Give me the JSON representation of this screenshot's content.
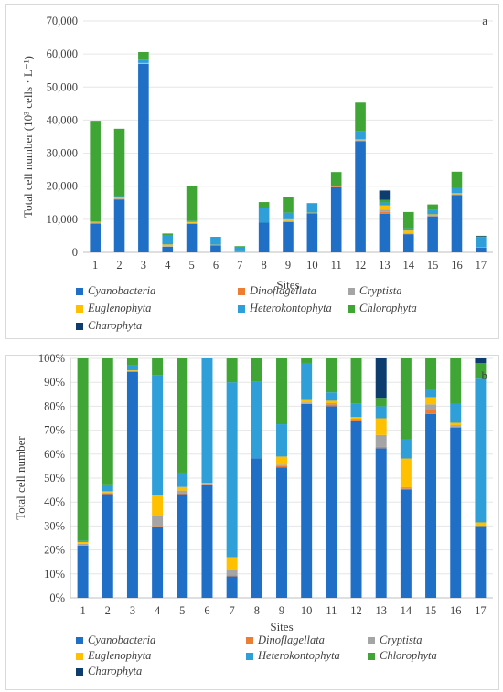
{
  "colors": {
    "Cyanobacteria": "#1f6fc6",
    "Dinoflagellata": "#ed7d31",
    "Cryptista": "#a5a5a5",
    "Euglenophyta": "#ffc000",
    "Heterokontophyta": "#2e9fd9",
    "Chlorophyta": "#3fa535",
    "Charophyta": "#0c3d6e"
  },
  "chart_data": [
    {
      "type": "bar",
      "stacked": true,
      "panel_label": "a",
      "categories": [
        "1",
        "2",
        "3",
        "4",
        "5",
        "6",
        "7",
        "8",
        "9",
        "10",
        "11",
        "12",
        "13",
        "14",
        "15",
        "16",
        "17"
      ],
      "xlabel": "Sites",
      "ylabel": "Total cell number (10³ cells · L⁻¹)",
      "ylim": [
        0,
        70000
      ],
      "yticks": [
        "0",
        "10,000",
        "20,000",
        "30,000",
        "40,000",
        "50,000",
        "60,000",
        "70,000"
      ],
      "ytick_values": [
        0,
        10000,
        20000,
        30000,
        40000,
        50000,
        60000,
        70000
      ],
      "legend_position": "bottom",
      "series": [
        {
          "name": "Cyanobacteria",
          "values": [
            8700,
            16000,
            57000,
            1700,
            8600,
            2100,
            150,
            9000,
            9200,
            11800,
            19700,
            33600,
            11700,
            5500,
            10900,
            17300,
            1400
          ]
        },
        {
          "name": "Dinoflagellata",
          "values": [
            100,
            100,
            100,
            0,
            100,
            0,
            0,
            0,
            100,
            0,
            200,
            200,
            500,
            100,
            100,
            100,
            0
          ]
        },
        {
          "name": "Cryptista",
          "values": [
            200,
            200,
            100,
            200,
            200,
            100,
            50,
            0,
            200,
            100,
            100,
            200,
            700,
            200,
            200,
            200,
            0
          ]
        },
        {
          "name": "Euglenophyta",
          "values": [
            200,
            300,
            100,
            500,
            300,
            100,
            100,
            0,
            500,
            100,
            100,
            200,
            1300,
            800,
            300,
            300,
            100
          ]
        },
        {
          "name": "Heterokontophyta",
          "values": [
            100,
            400,
            1000,
            2700,
            300,
            2400,
            1400,
            4500,
            2000,
            2700,
            100,
            2500,
            900,
            700,
            1300,
            1600,
            3000
          ]
        },
        {
          "name": "Chlorophyta",
          "values": [
            30500,
            20400,
            2300,
            600,
            10500,
            0,
            200,
            1700,
            4600,
            200,
            4100,
            8600,
            800,
            4900,
            1700,
            4900,
            300
          ]
        },
        {
          "name": "Charophyta",
          "values": [
            0,
            0,
            0,
            0,
            0,
            0,
            0,
            0,
            0,
            0,
            0,
            0,
            2800,
            0,
            0,
            0,
            200
          ]
        }
      ]
    },
    {
      "type": "bar",
      "stacked": true,
      "percent": true,
      "panel_label": "b",
      "categories": [
        "1",
        "2",
        "3",
        "4",
        "5",
        "6",
        "7",
        "8",
        "9",
        "10",
        "11",
        "12",
        "13",
        "14",
        "15",
        "16",
        "17"
      ],
      "xlabel": "Sites",
      "ylabel": "Total cell number",
      "ylim": [
        0,
        100
      ],
      "yticks": [
        "0%",
        "10%",
        "20%",
        "30%",
        "40%",
        "50%",
        "60%",
        "70%",
        "80%",
        "90%",
        "100%"
      ],
      "ytick_values": [
        0,
        10,
        20,
        30,
        40,
        50,
        60,
        70,
        80,
        90,
        100
      ],
      "legend_position": "bottom",
      "series": [
        {
          "name": "Cyanobacteria",
          "values": [
            21.8,
            43.3,
            94.4,
            29.8,
            43.3,
            47,
            9,
            58.3,
            54.5,
            81,
            80,
            74,
            62.5,
            45.3,
            76.8,
            71,
            30
          ]
        },
        {
          "name": "Dinoflagellata",
          "values": [
            0.3,
            0.3,
            0.1,
            0.2,
            0.5,
            0.2,
            0.5,
            0,
            0.6,
            0.2,
            0.8,
            0.4,
            0.5,
            0.4,
            1.5,
            0.4,
            0
          ]
        },
        {
          "name": "Cryptista",
          "values": [
            0.5,
            0.4,
            0.2,
            4,
            1,
            0.3,
            2,
            0,
            0.5,
            0.4,
            0.5,
            0.4,
            5,
            0.5,
            2.5,
            0.7,
            0
          ]
        },
        {
          "name": "Euglenophyta",
          "values": [
            0.7,
            0.5,
            0.3,
            9,
            1.5,
            0.5,
            5.5,
            0,
            3.4,
            1,
            1,
            0.7,
            7,
            12,
            3,
            1,
            1.5
          ]
        },
        {
          "name": "Heterokontophyta",
          "values": [
            0.5,
            2.5,
            2,
            50,
            6,
            52,
            73,
            32,
            13.5,
            15.5,
            3.5,
            5.5,
            5,
            8,
            3.5,
            8,
            60
          ]
        },
        {
          "name": "Chlorophyta",
          "values": [
            76.2,
            53,
            3,
            7,
            47.7,
            0,
            10,
            9.7,
            27.5,
            1.9,
            14.2,
            19,
            3.5,
            33.8,
            12.7,
            18.9,
            6.5
          ]
        },
        {
          "name": "Charophyta",
          "values": [
            0,
            0,
            0,
            0,
            0,
            0,
            0,
            0,
            0,
            0,
            0,
            0,
            16.5,
            0,
            0,
            0,
            2
          ]
        }
      ]
    }
  ]
}
